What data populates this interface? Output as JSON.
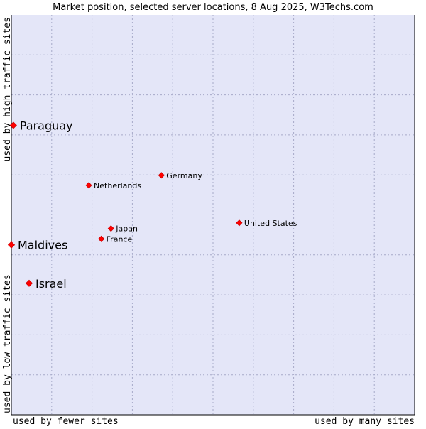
{
  "chart_data": {
    "type": "scatter",
    "title": "Market position, selected server locations, 8 Aug 2025, W3Techs.com",
    "xlabel_left": "used by fewer sites",
    "xlabel_right": "used by many sites",
    "ylabel_bottom": "used by low traffic sites",
    "ylabel_top": "used by high traffic sites",
    "xlim": [
      0,
      100
    ],
    "ylim": [
      0,
      100
    ],
    "grid": true,
    "colors": {
      "plot_bg": "#e4e6f8",
      "grid": "#a6a9c8",
      "axis": "#000000",
      "marker": "#ff0000",
      "marker_edge": "#cc0000"
    },
    "points": [
      {
        "label": "Paraguay",
        "x": 0.5,
        "y": 72.4,
        "emphasis": true
      },
      {
        "label": "Maldives",
        "x": 0.0,
        "y": 42.5,
        "emphasis": true
      },
      {
        "label": "Israel",
        "x": 4.4,
        "y": 32.9,
        "emphasis": true
      },
      {
        "label": "Netherlands",
        "x": 19.2,
        "y": 57.4,
        "emphasis": false
      },
      {
        "label": "Germany",
        "x": 37.2,
        "y": 59.9,
        "emphasis": false
      },
      {
        "label": "Japan",
        "x": 24.7,
        "y": 46.6,
        "emphasis": false
      },
      {
        "label": "France",
        "x": 22.3,
        "y": 44.0,
        "emphasis": false
      },
      {
        "label": "United States",
        "x": 56.5,
        "y": 48.0,
        "emphasis": false
      }
    ]
  }
}
